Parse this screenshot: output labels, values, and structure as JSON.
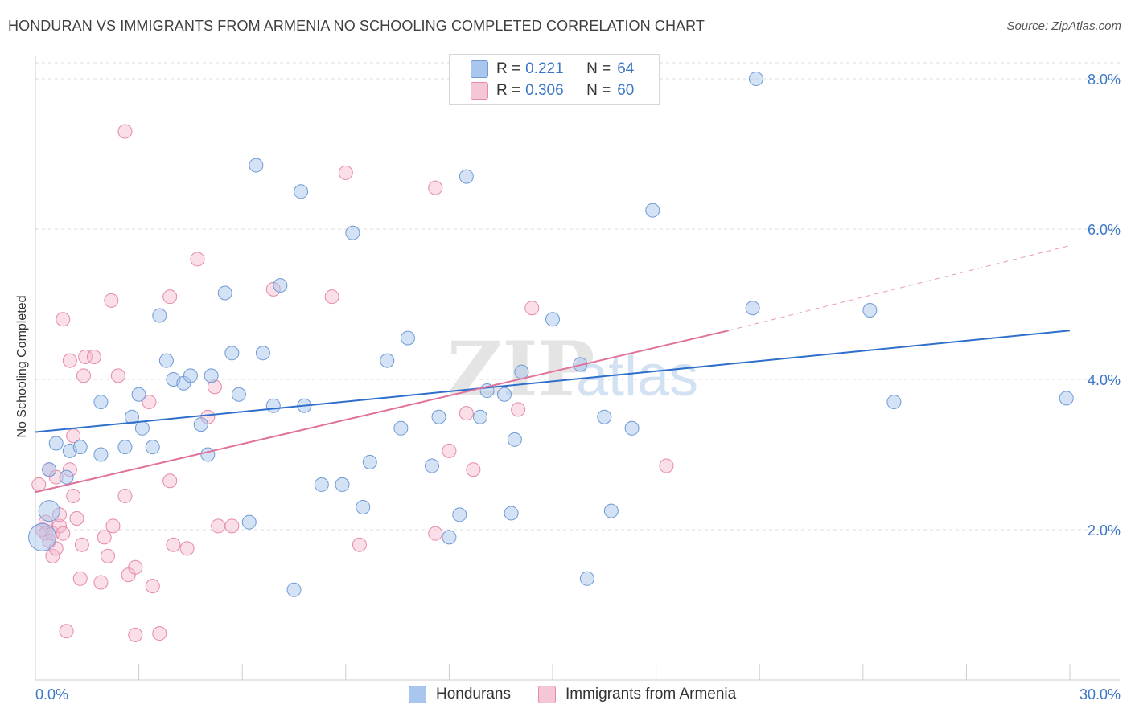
{
  "header": {
    "title": "HONDURAN VS IMMIGRANTS FROM ARMENIA NO SCHOOLING COMPLETED CORRELATION CHART",
    "source": "Source: ZipAtlas.com"
  },
  "watermark": {
    "part1": "ZIP",
    "part2": "atlas"
  },
  "legend_top": {
    "rows": [
      {
        "r_label": "R =",
        "r_value": "0.221",
        "n_label": "N =",
        "n_value": "64"
      },
      {
        "r_label": "R =",
        "r_value": "0.306",
        "n_label": "N =",
        "n_value": "60"
      }
    ]
  },
  "legend_bottom": {
    "items": [
      {
        "label": "Hondurans"
      },
      {
        "label": "Immigrants from Armenia"
      }
    ]
  },
  "colors": {
    "blue_fill": "#a9c6ee",
    "blue_stroke": "#6f9ad4",
    "blue_line": "#2f6fcc",
    "pink_fill": "#f5b8cb",
    "pink_stroke": "#e58aa8",
    "pink_line": "#e0719a",
    "axis_text": "#3d77c7",
    "grid": "#dddddd"
  },
  "chart_data": {
    "type": "scatter",
    "title": "HONDURAN VS IMMIGRANTS FROM ARMENIA NO SCHOOLING COMPLETED CORRELATION CHART",
    "xlabel": "",
    "ylabel": "No Schooling Completed",
    "xlim": [
      0,
      30
    ],
    "ylim": [
      0,
      8.3
    ],
    "x_tick_labels": [
      {
        "value": 0,
        "label": "0.0%"
      },
      {
        "value": 30,
        "label": "30.0%"
      }
    ],
    "y_tick_labels": [
      {
        "value": 2,
        "label": "2.0%"
      },
      {
        "value": 4,
        "label": "4.0%"
      },
      {
        "value": 6,
        "label": "6.0%"
      },
      {
        "value": 8,
        "label": "8.0%"
      }
    ],
    "series": [
      {
        "name": "Hondurans",
        "color": "#a9c6ee",
        "R": 0.221,
        "N": 64,
        "trend": {
          "x0": 0,
          "y0": 3.3,
          "x1": 30,
          "y1": 4.65
        },
        "points": [
          [
            0.4,
            2.8
          ],
          [
            0.9,
            2.7
          ],
          [
            0.6,
            3.15
          ],
          [
            1.0,
            3.05
          ],
          [
            1.9,
            3.0
          ],
          [
            1.3,
            3.1
          ],
          [
            1.9,
            3.7
          ],
          [
            2.6,
            3.1
          ],
          [
            2.8,
            3.5
          ],
          [
            3.0,
            3.8
          ],
          [
            3.1,
            3.35
          ],
          [
            3.4,
            3.1
          ],
          [
            3.6,
            4.85
          ],
          [
            3.8,
            4.25
          ],
          [
            4.0,
            4.0
          ],
          [
            4.3,
            3.95
          ],
          [
            4.5,
            4.05
          ],
          [
            4.8,
            3.4
          ],
          [
            5.0,
            3.0
          ],
          [
            5.1,
            4.05
          ],
          [
            5.5,
            5.15
          ],
          [
            5.7,
            4.35
          ],
          [
            5.9,
            3.8
          ],
          [
            6.2,
            2.1
          ],
          [
            6.4,
            6.85
          ],
          [
            6.6,
            4.35
          ],
          [
            6.9,
            3.65
          ],
          [
            7.1,
            5.25
          ],
          [
            7.5,
            1.2
          ],
          [
            7.7,
            6.5
          ],
          [
            7.8,
            3.65
          ],
          [
            8.3,
            2.6
          ],
          [
            8.9,
            2.6
          ],
          [
            9.2,
            5.95
          ],
          [
            9.5,
            2.3
          ],
          [
            9.7,
            2.9
          ],
          [
            10.2,
            4.25
          ],
          [
            10.6,
            3.35
          ],
          [
            10.8,
            4.55
          ],
          [
            11.5,
            2.85
          ],
          [
            11.7,
            3.5
          ],
          [
            12.0,
            1.9
          ],
          [
            12.3,
            2.2
          ],
          [
            12.5,
            6.7
          ],
          [
            12.9,
            3.5
          ],
          [
            13.1,
            3.85
          ],
          [
            13.6,
            3.8
          ],
          [
            13.8,
            2.22
          ],
          [
            13.9,
            3.2
          ],
          [
            14.1,
            4.1
          ],
          [
            15.0,
            4.8
          ],
          [
            15.8,
            4.2
          ],
          [
            16.0,
            1.35
          ],
          [
            16.5,
            3.5
          ],
          [
            16.7,
            2.25
          ],
          [
            17.3,
            3.35
          ],
          [
            17.9,
            6.25
          ],
          [
            20.8,
            4.95
          ],
          [
            20.9,
            8.0
          ],
          [
            24.2,
            4.92
          ],
          [
            24.9,
            3.7
          ],
          [
            29.9,
            3.75
          ],
          [
            0.4,
            2.25
          ],
          [
            0.2,
            1.9
          ]
        ],
        "big_points": [
          [
            0.4,
            2.25
          ],
          [
            0.2,
            1.9
          ]
        ]
      },
      {
        "name": "Immigrants from Armenia",
        "color": "#f5b8cb",
        "R": 0.306,
        "N": 60,
        "trend": {
          "x0": 0,
          "y0": 2.5,
          "x1": 20.1,
          "y1": 4.65
        },
        "trend_dashed": {
          "x0": 20.1,
          "y0": 4.65,
          "x1": 30,
          "y1": 5.78
        },
        "points": [
          [
            0.1,
            2.6
          ],
          [
            0.2,
            2.0
          ],
          [
            0.3,
            2.1
          ],
          [
            0.3,
            1.95
          ],
          [
            0.4,
            2.8
          ],
          [
            0.4,
            1.85
          ],
          [
            0.5,
            1.95
          ],
          [
            0.5,
            1.65
          ],
          [
            0.6,
            2.7
          ],
          [
            0.6,
            1.75
          ],
          [
            0.7,
            2.05
          ],
          [
            0.7,
            2.2
          ],
          [
            0.8,
            1.95
          ],
          [
            0.8,
            4.8
          ],
          [
            0.9,
            0.65
          ],
          [
            1.0,
            2.8
          ],
          [
            1.0,
            4.25
          ],
          [
            1.1,
            3.25
          ],
          [
            1.1,
            2.45
          ],
          [
            1.2,
            2.15
          ],
          [
            1.3,
            1.35
          ],
          [
            1.35,
            1.8
          ],
          [
            1.4,
            4.05
          ],
          [
            1.45,
            4.3
          ],
          [
            1.7,
            4.3
          ],
          [
            1.9,
            1.3
          ],
          [
            2.0,
            1.9
          ],
          [
            2.1,
            1.65
          ],
          [
            2.2,
            5.05
          ],
          [
            2.25,
            2.05
          ],
          [
            2.4,
            4.05
          ],
          [
            2.6,
            2.45
          ],
          [
            2.6,
            7.3
          ],
          [
            2.7,
            1.4
          ],
          [
            2.9,
            1.5
          ],
          [
            2.9,
            0.6
          ],
          [
            3.3,
            3.7
          ],
          [
            3.4,
            1.25
          ],
          [
            3.6,
            0.62
          ],
          [
            3.9,
            5.1
          ],
          [
            3.9,
            2.65
          ],
          [
            4.0,
            1.8
          ],
          [
            4.4,
            1.75
          ],
          [
            4.7,
            5.6
          ],
          [
            5.0,
            3.5
          ],
          [
            5.2,
            3.9
          ],
          [
            5.3,
            2.05
          ],
          [
            5.7,
            2.05
          ],
          [
            6.9,
            5.2
          ],
          [
            8.6,
            5.1
          ],
          [
            9.0,
            6.75
          ],
          [
            9.4,
            1.8
          ],
          [
            11.6,
            1.95
          ],
          [
            11.6,
            6.55
          ],
          [
            12.0,
            3.05
          ],
          [
            12.5,
            3.55
          ],
          [
            12.7,
            2.8
          ],
          [
            14.0,
            3.6
          ],
          [
            14.4,
            4.95
          ],
          [
            18.3,
            2.85
          ]
        ]
      }
    ]
  }
}
